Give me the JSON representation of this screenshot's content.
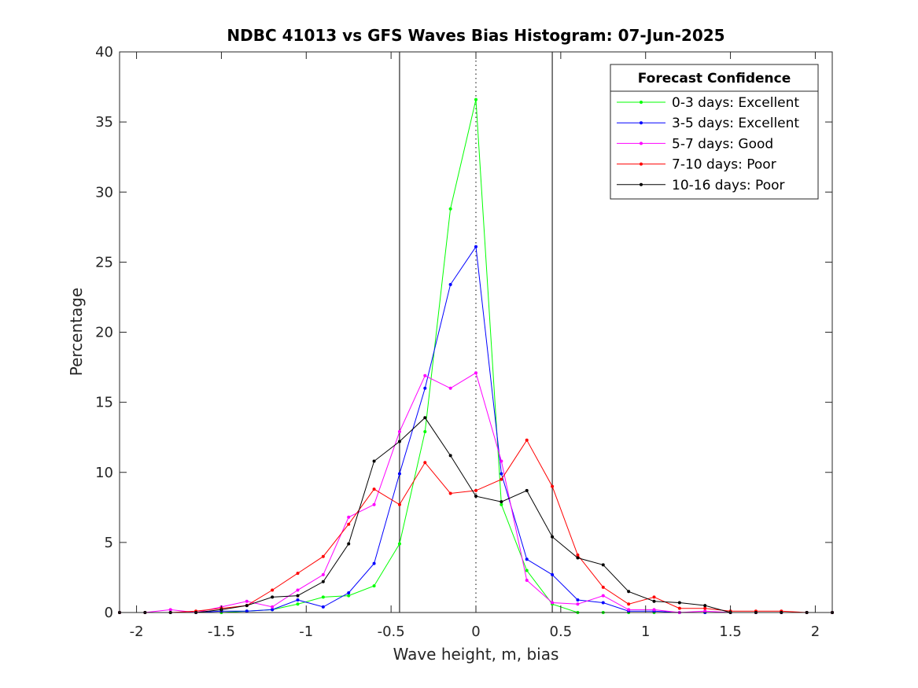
{
  "chart_data": {
    "type": "line",
    "title": "NDBC 41013 vs GFS Waves Bias Histogram: 07-Jun-2025",
    "xlabel": "Wave height, m, bias",
    "ylabel": "Percentage",
    "xlim": [
      -2.1,
      2.1
    ],
    "ylim": [
      0,
      40
    ],
    "xticks": [
      -2,
      -1.5,
      -1,
      -0.5,
      0,
      0.5,
      1,
      1.5,
      2
    ],
    "xtick_labels": [
      "-2",
      "-1.5",
      "-1",
      "-0.5",
      "0",
      "0.5",
      "1",
      "1.5",
      "2"
    ],
    "yticks": [
      0,
      5,
      10,
      15,
      20,
      25,
      30,
      35,
      40
    ],
    "ytick_labels": [
      "0",
      "5",
      "10",
      "15",
      "20",
      "25",
      "30",
      "35",
      "40"
    ],
    "grid": false,
    "reference_lines": {
      "solid": [
        -0.45,
        0.45
      ],
      "dotted": [
        0
      ]
    },
    "legend": {
      "title": "Forecast Confidence",
      "placement": "top-right"
    },
    "x": [
      -2.1,
      -1.95,
      -1.8,
      -1.65,
      -1.5,
      -1.35,
      -1.2,
      -1.05,
      -0.9,
      -0.75,
      -0.6,
      -0.45,
      -0.3,
      -0.15,
      0,
      0.15,
      0.3,
      0.45,
      0.6,
      0.75,
      0.9,
      1.05,
      1.2,
      1.35,
      1.5,
      1.65,
      1.8,
      1.95,
      2.1
    ],
    "series": [
      {
        "name": "0-3 days: Excellent",
        "color": "#00ff00",
        "values": [
          0,
          0,
          0,
          0,
          0,
          0.1,
          0.2,
          0.6,
          1.1,
          1.2,
          1.9,
          4.9,
          12.9,
          28.8,
          36.6,
          7.7,
          3.0,
          0.6,
          0,
          0,
          0,
          0,
          0,
          0,
          0,
          0,
          0,
          0,
          0
        ]
      },
      {
        "name": "3-5 days: Excellent",
        "color": "#0000ff",
        "values": [
          0,
          0,
          0,
          0,
          0.1,
          0.1,
          0.2,
          0.9,
          0.4,
          1.4,
          3.5,
          9.9,
          16.0,
          23.4,
          26.1,
          9.9,
          3.8,
          2.7,
          0.9,
          0.7,
          0.1,
          0.1,
          0,
          0,
          0,
          0,
          0,
          0,
          0
        ]
      },
      {
        "name": "5-7 days: Good",
        "color": "#ff00ff",
        "values": [
          0,
          0,
          0.2,
          0,
          0.4,
          0.8,
          0.4,
          1.6,
          2.7,
          6.8,
          7.7,
          12.9,
          16.9,
          16.0,
          17.1,
          10.8,
          2.3,
          0.7,
          0.6,
          1.2,
          0.2,
          0.2,
          0,
          0.1,
          0,
          0,
          0,
          0,
          0
        ]
      },
      {
        "name": "7-10 days: Poor",
        "color": "#ff0000",
        "values": [
          0,
          0,
          0,
          0.1,
          0.3,
          0.5,
          1.6,
          2.8,
          4.0,
          6.3,
          8.8,
          7.7,
          10.7,
          8.5,
          8.7,
          9.5,
          12.3,
          9.0,
          4.1,
          1.8,
          0.6,
          1.1,
          0.3,
          0.3,
          0.1,
          0.1,
          0.1,
          0,
          0
        ]
      },
      {
        "name": "10-16 days: Poor",
        "color": "#000000",
        "values": [
          0,
          0,
          0,
          0,
          0.2,
          0.5,
          1.1,
          1.2,
          2.2,
          4.9,
          10.8,
          12.2,
          13.9,
          11.2,
          8.3,
          7.9,
          8.7,
          5.4,
          3.9,
          3.4,
          1.5,
          0.8,
          0.7,
          0.5,
          0,
          0,
          0,
          0,
          0
        ]
      }
    ]
  }
}
